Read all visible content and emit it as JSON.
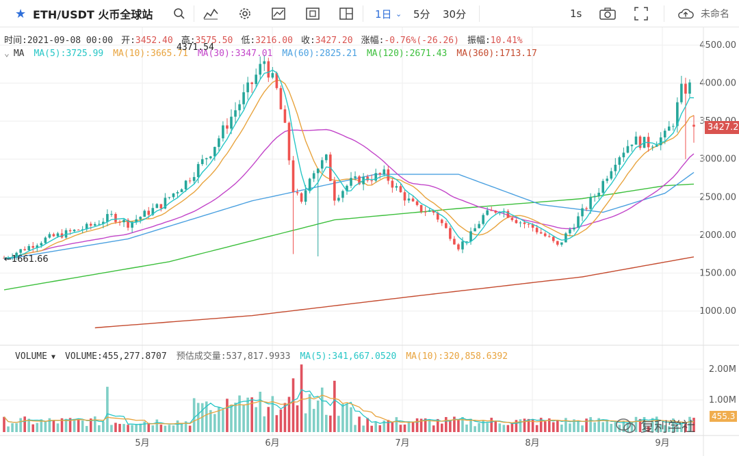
{
  "toolbar": {
    "symbol": "ETH/USDT 火币全球站",
    "intervals": [
      "1日",
      "5分",
      "30分"
    ],
    "active_interval": "1日",
    "speed": "1s",
    "unnamed": "未命名"
  },
  "ohlc": {
    "time_k": "时间:",
    "time_v": "2021-09-08 00:00",
    "open_k": "开:",
    "open_v": "3452.40",
    "high_k": "高:",
    "high_v": "3575.50",
    "low_k": "低:",
    "low_v": "3216.00",
    "close_k": "收:",
    "close_v": "3427.20",
    "chg_k": "涨幅:",
    "chg_v": "-0.76%(-26.26)",
    "amp_k": "振幅:",
    "amp_v": "10.41%"
  },
  "ma_legend": {
    "label": "MA",
    "ma5": "MA(5):3725.99",
    "ma10": "MA(10):3665.71",
    "ma30": "MA(30):3347.01",
    "ma60": "MA(60):2825.21",
    "ma120": "MA(120):2671.43",
    "ma360": "MA(360):1713.17",
    "overlap": "4371.54"
  },
  "volume_legend": {
    "label": "VOLUME",
    "volume": "VOLUME:455,277.8707",
    "est": "预估成交量:537,817.9933",
    "ma5": "MA(5):341,667.0520",
    "ma10": "MA(10):320,858.6392"
  },
  "price_axis": [
    "4500.00",
    "4000.00",
    "3500.00",
    "3000.00",
    "2500.00",
    "2000.00",
    "1500.00",
    "1000.00"
  ],
  "volume_axis": [
    "2.00M",
    "1.00M"
  ],
  "time_axis": [
    "5月",
    "6月",
    "7月",
    "8月",
    "9月"
  ],
  "last_price": "3427.2",
  "last_volume": "455.3",
  "min_label": "←1661.66",
  "watermark": "复利学社",
  "colors": {
    "up": "#26a69a",
    "down": "#ef5350",
    "ma5": "#26c6c6",
    "ma10": "#e8a33d",
    "ma30": "#c245c9",
    "ma60": "#4aa0e0",
    "ma120": "#3cbf3c",
    "ma360": "#c44a2e",
    "accent": "#2f6fd9"
  },
  "chart_data": {
    "type": "candlestick",
    "price_axis_ticks": [
      4500,
      4000,
      3500,
      3000,
      2500,
      2000,
      1500,
      1000
    ],
    "volume_axis_ticks": [
      2000000,
      1000000
    ],
    "x_ticks": [
      "5月",
      "6月",
      "7月",
      "8月",
      "9月"
    ],
    "last_close": 3427.2,
    "series": [
      {
        "name": "MA(5)",
        "last": 3725.99
      },
      {
        "name": "MA(10)",
        "last": 3665.71
      },
      {
        "name": "MA(30)",
        "last": 3347.01
      },
      {
        "name": "MA(60)",
        "last": 2825.21
      },
      {
        "name": "MA(120)",
        "last": 2671.43
      },
      {
        "name": "MA(360)",
        "last": 1713.17
      }
    ],
    "volume_last": 455277.8707,
    "volume_ma5": 341667.052,
    "volume_ma10": 320858.6392
  }
}
